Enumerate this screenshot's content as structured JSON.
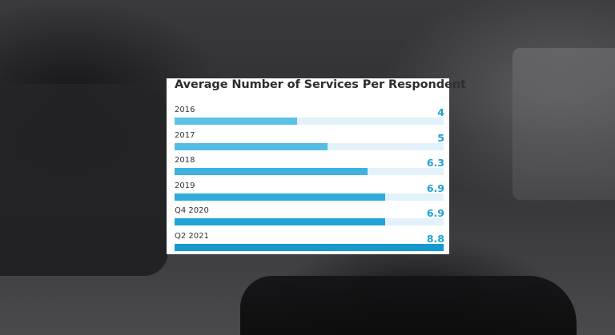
{
  "chart_data": {
    "type": "bar",
    "orientation": "horizontal",
    "title": "Average Number of Services Per Respondent",
    "categories": [
      "2016",
      "2017",
      "2018",
      "2019",
      "Q4 2020",
      "Q2 2021"
    ],
    "values": [
      4,
      5,
      6.3,
      6.9,
      6.9,
      8.8
    ],
    "value_labels": [
      "4",
      "5",
      "6.3",
      "6.9",
      "6.9",
      "8.8"
    ],
    "xlim": [
      0,
      8.8
    ],
    "grid": false,
    "legend": "none",
    "bar_colors": [
      "#5bc2e6",
      "#55bde4",
      "#3fb2df",
      "#2eaadc",
      "#22a4d8",
      "#1599d1"
    ],
    "track_color": "#e3f2fa",
    "value_color": "#1ea3d2"
  }
}
